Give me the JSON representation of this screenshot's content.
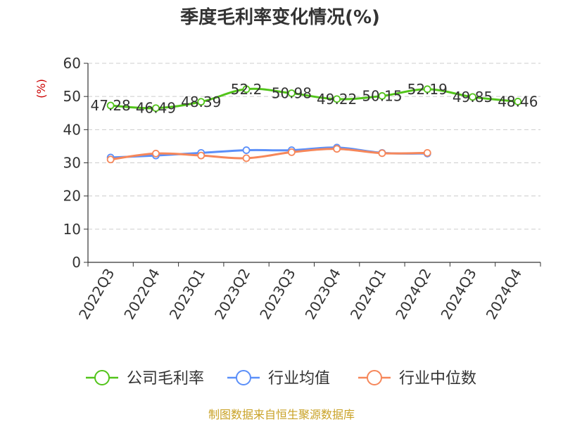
{
  "chart_data": {
    "type": "line",
    "title": "季度毛利率变化情况(%)",
    "ylabel": "(%)",
    "xlabel": "",
    "ylim": [
      0,
      60
    ],
    "yticks": [
      0,
      10,
      20,
      30,
      40,
      50,
      60
    ],
    "grid": true,
    "legend_position": "bottom",
    "categories": [
      "2022Q3",
      "2022Q4",
      "2023Q1",
      "2023Q2",
      "2023Q3",
      "2023Q4",
      "2024Q1",
      "2024Q2",
      "2024Q3",
      "2024Q4"
    ],
    "series": [
      {
        "name": "公司毛利率",
        "color": "#52c41a",
        "values": [
          47.28,
          46.49,
          48.39,
          52.2,
          50.98,
          49.22,
          50.15,
          52.19,
          49.85,
          48.46
        ],
        "labels": [
          "47.28",
          "46.49",
          "48.39",
          "52.2",
          "50.98",
          "49.22",
          "50.15",
          "52.19",
          "49.85",
          "48.46"
        ]
      },
      {
        "name": "行业均值",
        "color": "#5b8ff9",
        "values": [
          31.6,
          32.2,
          33.0,
          33.8,
          33.8,
          34.6,
          33.0,
          32.8,
          null,
          null
        ]
      },
      {
        "name": "行业中位数",
        "color": "#f6875a",
        "values": [
          31.0,
          32.8,
          32.2,
          31.4,
          33.2,
          34.2,
          32.9,
          33.0,
          null,
          null
        ]
      }
    ]
  },
  "source": "制图数据来自恒生聚源数据库"
}
